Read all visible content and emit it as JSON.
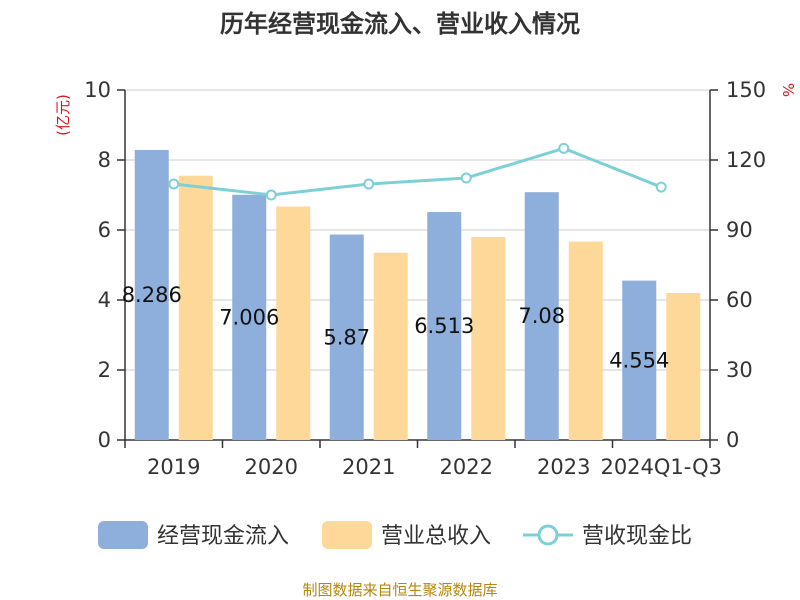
{
  "chart_data": {
    "type": "bar",
    "title": "历年经营现金流入、营业收入情况",
    "categories": [
      "2019",
      "2020",
      "2021",
      "2022",
      "2023",
      "2024Q1-Q3"
    ],
    "series": [
      {
        "name": "经营现金流入",
        "type": "bar",
        "axis": "left",
        "color": "#8eaedb",
        "values": [
          8.286,
          7.006,
          5.87,
          6.513,
          7.08,
          4.554
        ],
        "labels": [
          "8.286",
          "7.006",
          "5.87",
          "6.513",
          "7.08",
          "4.554"
        ]
      },
      {
        "name": "营业总收入",
        "type": "bar",
        "axis": "left",
        "color": "#fed899",
        "values": [
          7.55,
          6.67,
          5.35,
          5.8,
          5.67,
          4.2
        ]
      },
      {
        "name": "营收现金比",
        "type": "line",
        "axis": "right",
        "color": "#7fd0d6",
        "values": [
          109.7,
          105.0,
          109.7,
          112.3,
          125.0,
          108.4
        ]
      }
    ],
    "y_left": {
      "label": "(亿元)",
      "min": 0,
      "max": 10,
      "ticks": [
        "0",
        "2",
        "4",
        "6",
        "8",
        "10"
      ]
    },
    "y_right": {
      "label": "%",
      "min": 0,
      "max": 150,
      "ticks": [
        "0",
        "30",
        "60",
        "90",
        "120",
        "150"
      ]
    },
    "grid": true,
    "legend_position": "bottom"
  },
  "source": "制图数据来自恒生聚源数据库"
}
